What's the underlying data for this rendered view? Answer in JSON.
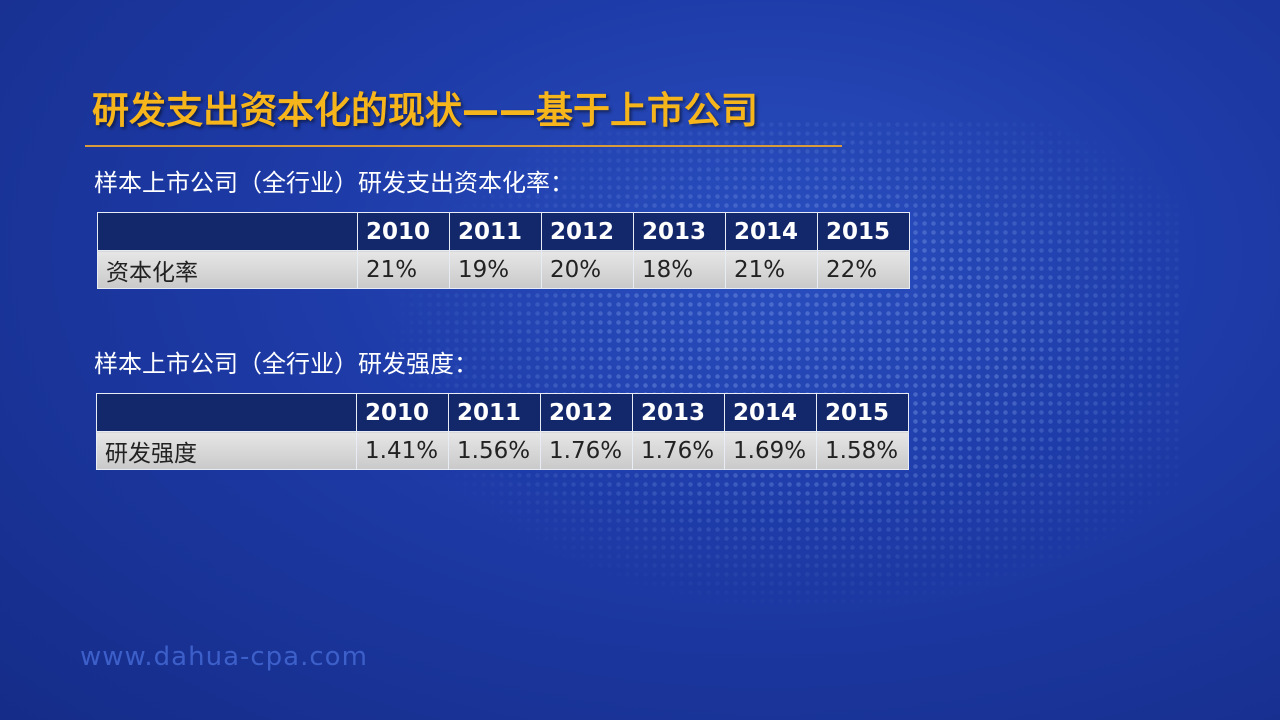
{
  "title": "研发支出资本化的现状——基于上市公司",
  "tables": [
    {
      "caption": "样本上市公司（全行业）研发支出资本化率：",
      "header": [
        "2010",
        "2011",
        "2012",
        "2013",
        "2014",
        "2015"
      ],
      "row_label": "资本化率",
      "row": [
        "21%",
        "19%",
        "20%",
        "18%",
        "21%",
        "22%"
      ]
    },
    {
      "caption": "样本上市公司（全行业）研发强度：",
      "header": [
        "2010",
        "2011",
        "2012",
        "2013",
        "2014",
        "2015"
      ],
      "row_label": "研发强度",
      "row": [
        "1.41%",
        "1.56%",
        "1.76%",
        "1.76%",
        "1.69%",
        "1.58%"
      ]
    }
  ],
  "footer": "www.dahua-cpa.com"
}
